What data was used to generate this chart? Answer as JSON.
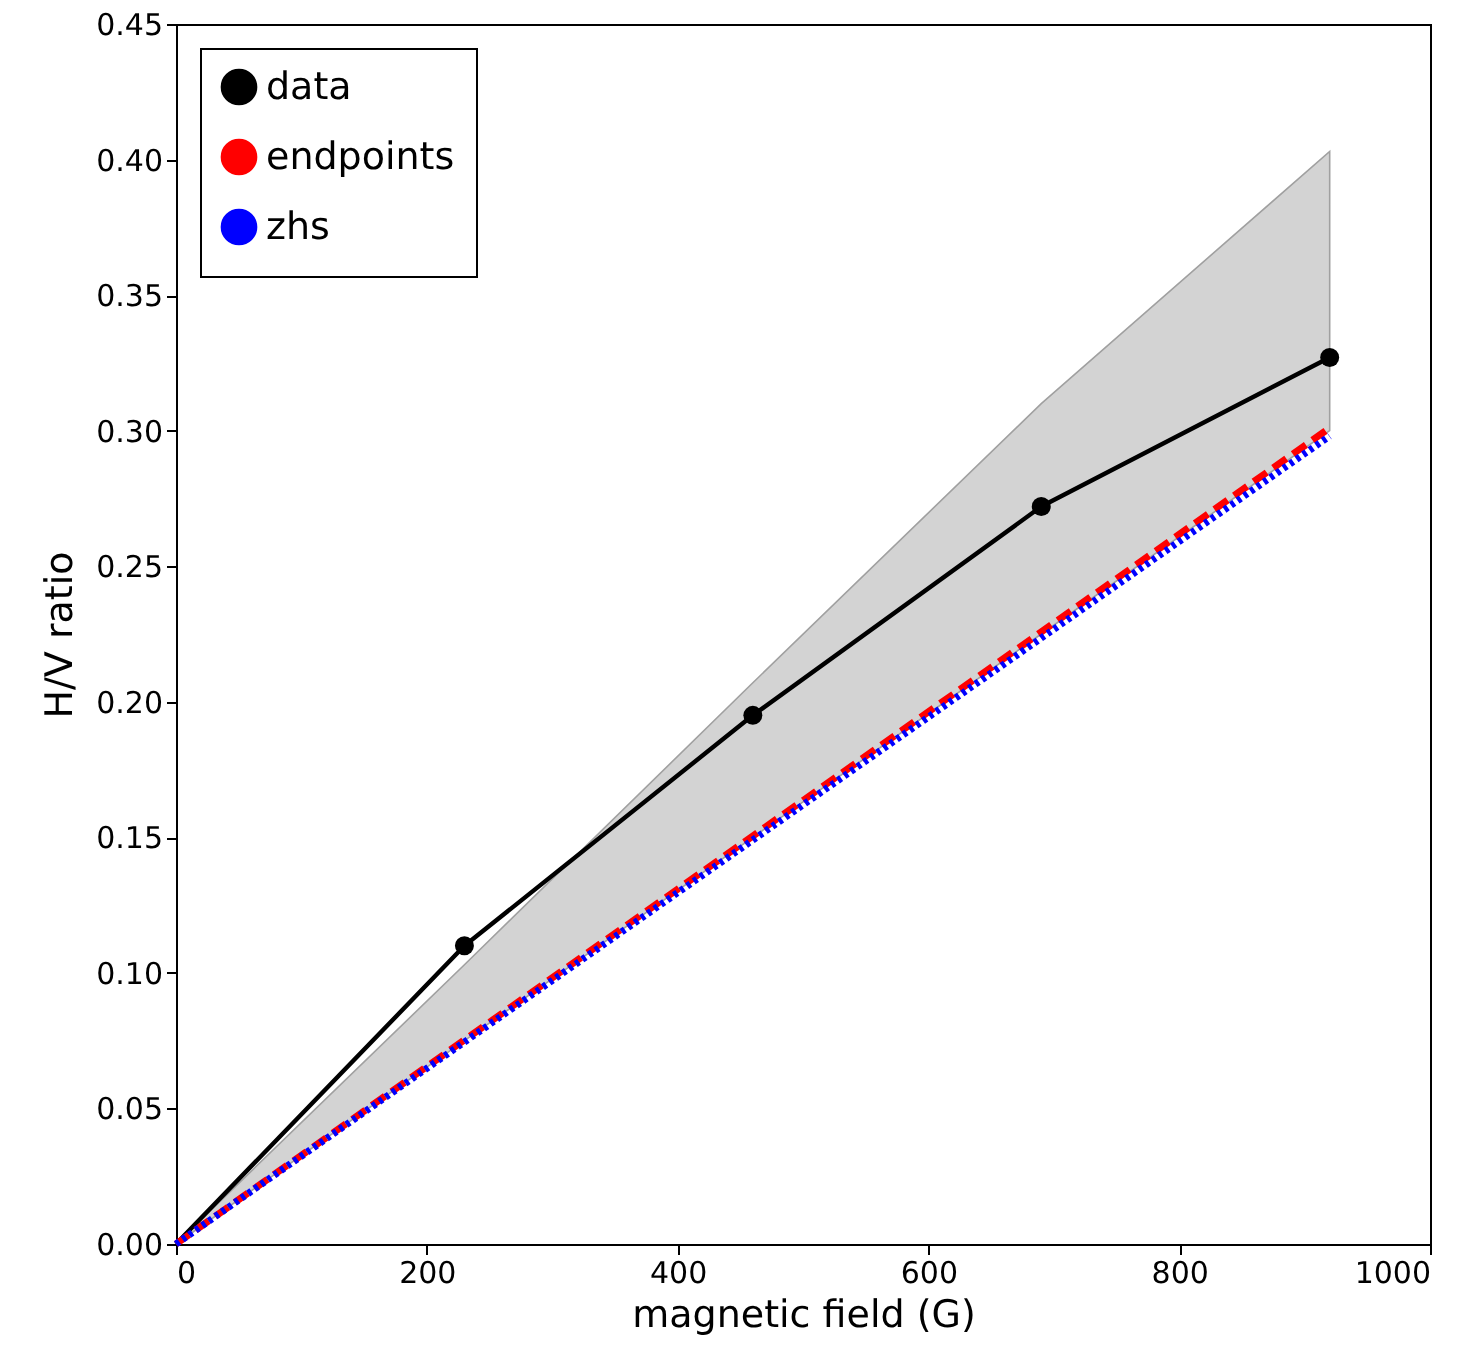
{
  "chart_data": {
    "type": "line",
    "xlabel": "magnetic field (G)",
    "ylabel": "H/V ratio",
    "xlim": [
      0,
      1000
    ],
    "xticks": [
      0,
      200,
      400,
      600,
      800,
      1000
    ],
    "ylim": [
      0,
      0.45
    ],
    "yticks": [
      {
        "value": 0,
        "label": "0.00"
      },
      {
        "value": 0.05,
        "label": "0.05"
      },
      {
        "value": 0.1,
        "label": "0.10"
      },
      {
        "value": 0.15,
        "label": "0.15"
      },
      {
        "value": 0.2,
        "label": "0.20"
      },
      {
        "value": 0.25,
        "label": "0.25"
      },
      {
        "value": 0.3,
        "label": "0.30"
      },
      {
        "value": 0.35,
        "label": "0.35"
      },
      {
        "value": 0.4,
        "label": "0.40"
      },
      {
        "value": 0.45,
        "label": "0.45"
      }
    ],
    "grid": false,
    "legend": "top left",
    "series": [
      {
        "color": "#000000",
        "marker": "none",
        "line_style": "solid",
        "x": [
          0,
          230,
          460,
          690,
          920
        ],
        "values": [
          0,
          0.11,
          0.195,
          0.272,
          0.327
        ],
        "lower": [
          0,
          0.075,
          0.15,
          0.225,
          0.3
        ],
        "upper": [
          0,
          0.103,
          0.207,
          0.31,
          0.403
        ]
      },
      {
        "type": "scatter",
        "name": "data",
        "color": "#000000",
        "marker": "circle",
        "x": [
          230,
          460,
          690,
          920
        ],
        "values": [
          0.11,
          0.195,
          0.272,
          0.327
        ]
      },
      {
        "name": "endpoints",
        "color": "#ff0000",
        "marker": "none",
        "line_style": "dashed",
        "x": [
          0,
          920
        ],
        "values": [
          0,
          0.301
        ]
      },
      {
        "name": "zhs",
        "color": "#0000ff",
        "marker": "none",
        "line_style": "dotted",
        "x": [
          0,
          920
        ],
        "values": [
          0,
          0.298
        ]
      }
    ]
  }
}
